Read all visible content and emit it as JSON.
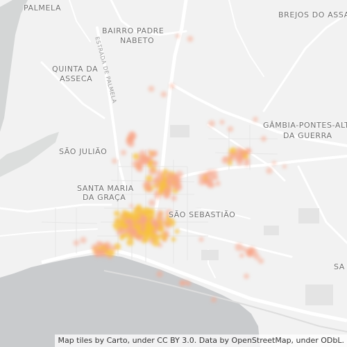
{
  "map": {
    "places": [
      {
        "id": "palmela",
        "text": "PALMELA"
      },
      {
        "id": "brejos-do-assa",
        "text": "BREJOS DO ASSA"
      },
      {
        "id": "bairro-padre-nabeto-1",
        "text": "BAIRRO PADRE"
      },
      {
        "id": "bairro-padre-nabeto-2",
        "text": "NABETO"
      },
      {
        "id": "quinta-da-asseca-1",
        "text": "QUINTA DA"
      },
      {
        "id": "quinta-da-asseca-2",
        "text": "ASSECA"
      },
      {
        "id": "gambia-1",
        "text": "GÂMBIA-PONTES-ALTA"
      },
      {
        "id": "gambia-2",
        "text": "DA GUERRA"
      },
      {
        "id": "sao-juliao",
        "text": "SÃO JULIÃO"
      },
      {
        "id": "santa-maria-1",
        "text": "SANTA MARIA"
      },
      {
        "id": "santa-maria-2",
        "text": "DA GRAÇA"
      },
      {
        "id": "sao-sebastiao",
        "text": "SÃO SEBASTIÃO"
      },
      {
        "id": "edge-sa",
        "text": "SA"
      }
    ],
    "road_labels": [
      {
        "id": "estrada-de-palmela",
        "text": "ESTRADA DE PALMELA"
      }
    ],
    "colors": {
      "land": "#f2f2f2",
      "water": "#c9cbcd",
      "road": "#ffffff",
      "heat_outer": "#f8a58a",
      "heat_inner": "#f7c13c"
    },
    "attribution": "Map tiles by Carto, under CC BY 3.0. Data by OpenStreetMap, under ODbL."
  }
}
